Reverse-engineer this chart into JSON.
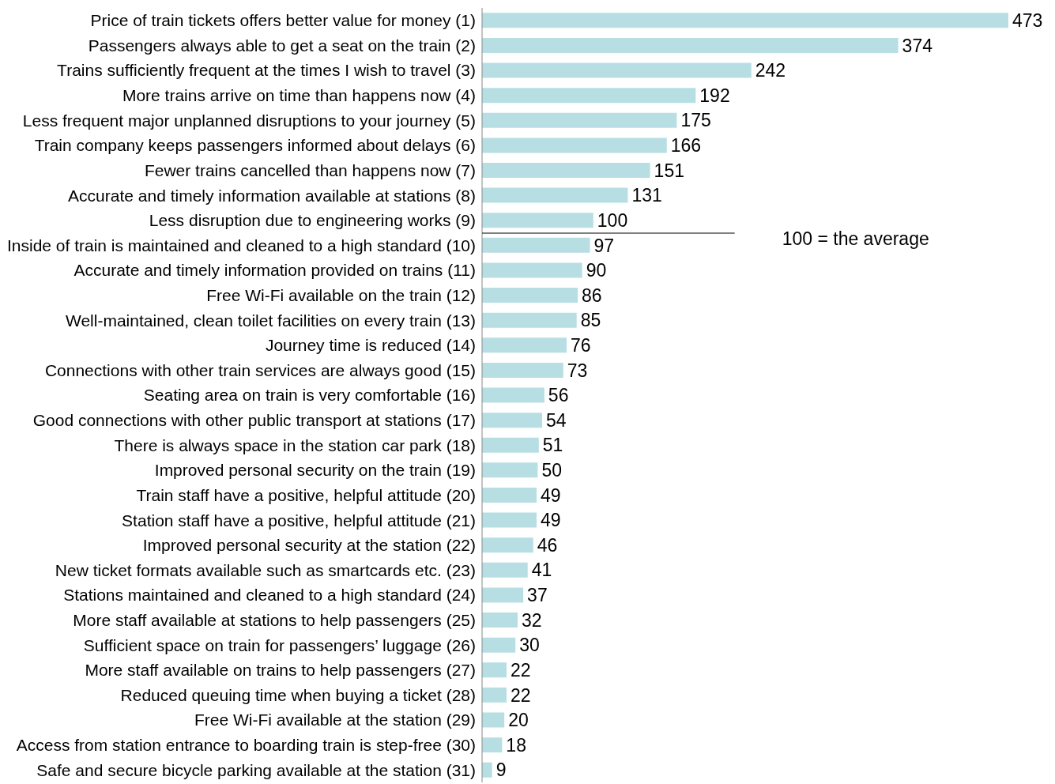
{
  "chart_data": {
    "type": "bar",
    "orientation": "horizontal",
    "categories": [
      "Price of train tickets offers better value for money (1)",
      "Passengers always able to get a seat on the train (2)",
      "Trains sufficiently frequent at the times I wish to travel (3)",
      "More trains arrive on time than happens now (4)",
      "Less frequent major unplanned disruptions to your journey (5)",
      "Train company keeps passengers informed about delays (6)",
      "Fewer trains cancelled than happens now (7)",
      "Accurate and timely information available at stations (8)",
      "Less disruption due to engineering works (9)",
      "Inside of train is maintained and cleaned to a high standard (10)",
      "Accurate and timely information provided on trains (11)",
      "Free Wi-Fi available on the train (12)",
      "Well-maintained, clean toilet facilities on every train (13)",
      "Journey time is reduced (14)",
      "Connections with other train services are always good (15)",
      "Seating area on train is very comfortable (16)",
      "Good connections with other public transport at stations (17)",
      "There is always space in the station car park (18)",
      "Improved personal security on the train (19)",
      "Train staff have a positive, helpful attitude (20)",
      "Station staff have a positive, helpful attitude (21)",
      "Improved personal security at the station (22)",
      "New ticket formats available such as smartcards etc. (23)",
      "Stations maintained and cleaned to a high standard (24)",
      "More staff available at stations to help passengers (25)",
      "Sufficient space on train for passengers’ luggage (26)",
      "More staff available on trains to help passengers (27)",
      "Reduced queuing time when buying a ticket (28)",
      "Free Wi-Fi available at the station (29)",
      "Access from station entrance to boarding train is step-free (30)",
      "Safe and secure bicycle parking available at the station (31)"
    ],
    "values": [
      473,
      374,
      242,
      192,
      175,
      166,
      151,
      131,
      100,
      97,
      90,
      86,
      85,
      76,
      73,
      56,
      54,
      51,
      50,
      49,
      49,
      46,
      41,
      37,
      32,
      30,
      22,
      22,
      20,
      18,
      9
    ],
    "color": "#b7dfe3",
    "data_labels": true,
    "ref_lines": [
      {
        "axis": "y",
        "value": "Less disruption due to engineering works (9)",
        "label": "100 = the average",
        "color": "#000000"
      }
    ]
  }
}
